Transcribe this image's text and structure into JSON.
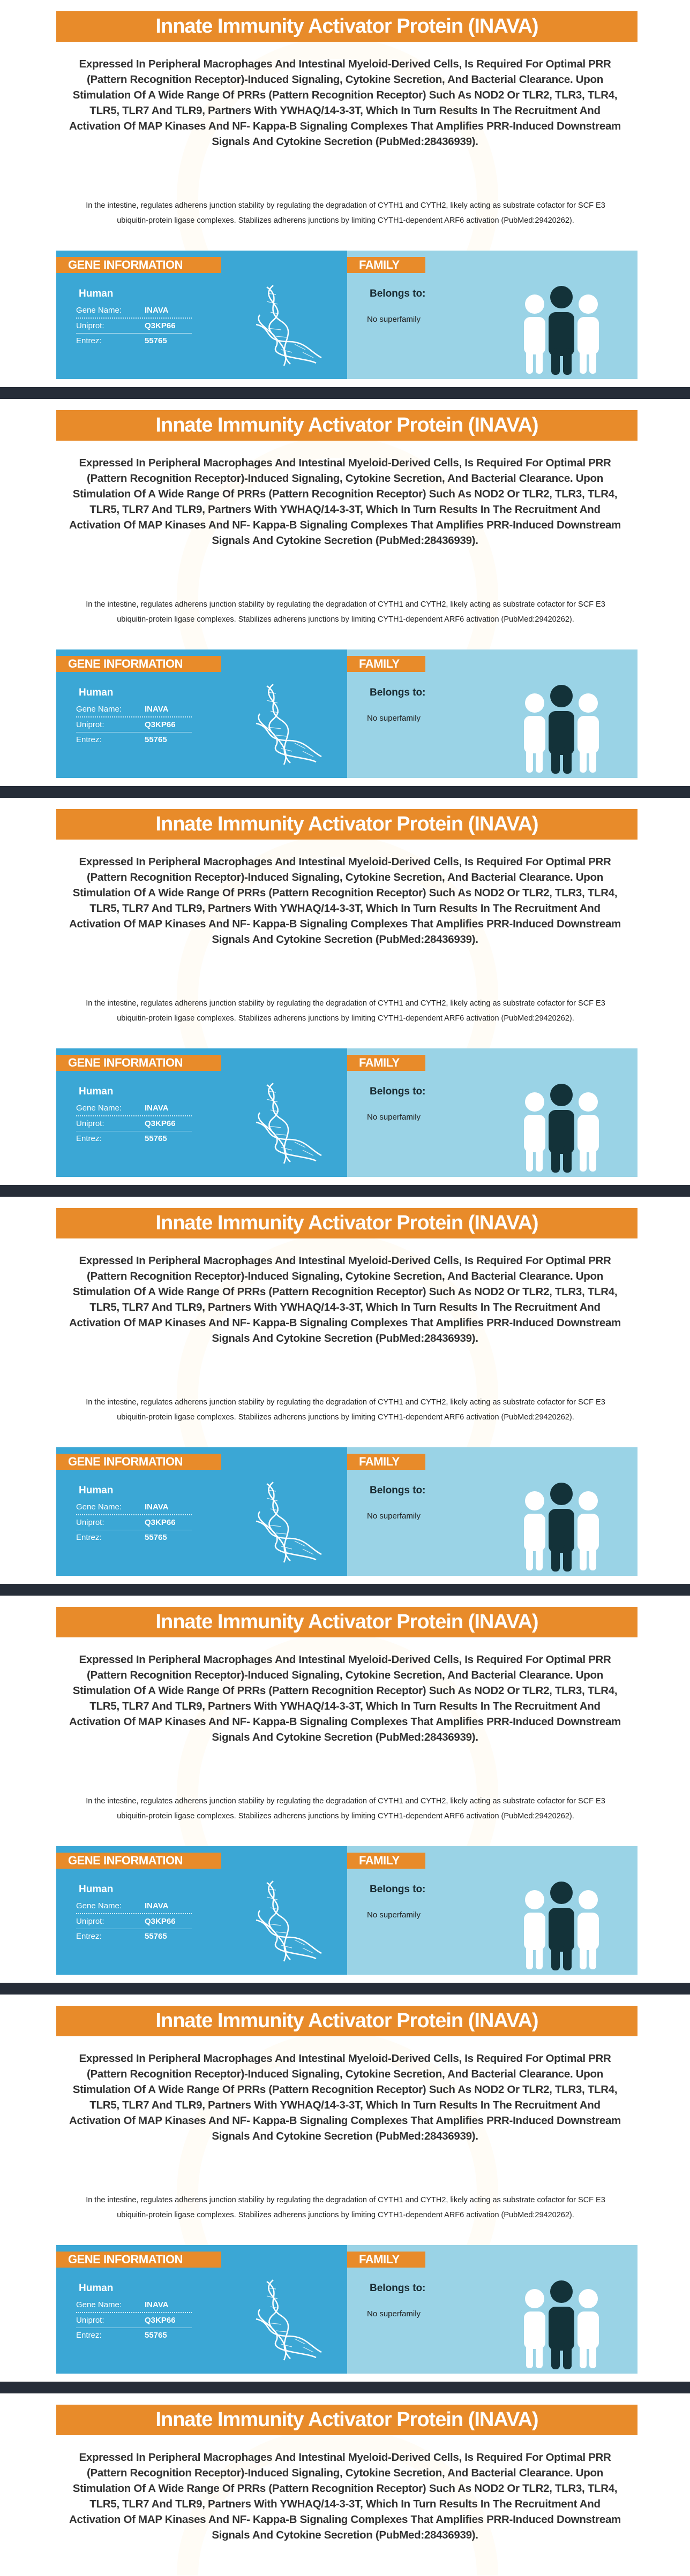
{
  "entry": {
    "title": "Innate Immunity Activator Protein (INAVA)",
    "description": "Expressed In Peripheral Macrophages And Intestinal Myeloid-Derived Cells, Is Required For Optimal PRR (Pattern Recognition Receptor)-Induced Signaling, Cytokine Secretion, And Bacterial Clearance. Upon Stimulation Of A Wide Range Of PRRs (Pattern Recognition Receptor) Such As NOD2 Or TLR2, TLR3, TLR4, TLR5, TLR7 And TLR9, Partners With YWHAQ/14-3-3T, Which In Turn Results In The Recruitment And Activation Of MAP Kinases And NF- Kappa-B Signaling Complexes That Amplifies PRR-Induced Downstream Signals And Cytokine Secretion (PubMed:28436939).",
    "function_note": "In the intestine, regulates adherens junction stability by regulating the degradation of CYTH1 and CYTH2, likely acting as substrate cofactor for SCF E3 ubiquitin-protein ligase complexes. Stabilizes adherens junctions by limiting CYTH1-dependent ARF6 activation (PubMed:29420262).",
    "gene_info": {
      "header": "GENE INFORMATION",
      "species": "Human",
      "rows": [
        {
          "label": "Gene Name:",
          "value": "INAVA"
        },
        {
          "label": "Uniprot:",
          "value": "Q3KP66"
        },
        {
          "label": "Entrez:",
          "value": "55765"
        }
      ],
      "icon": "dna-icon"
    },
    "family": {
      "header": "FAMILY",
      "belongs_label": "Belongs to:",
      "value": "No superfamily",
      "icon": "people-icon"
    }
  },
  "colors": {
    "accent": "#E88B2A",
    "gene_panel": "#3BA7D5",
    "family_panel": "#9AD3E6",
    "dark_bar": "#262D38"
  }
}
